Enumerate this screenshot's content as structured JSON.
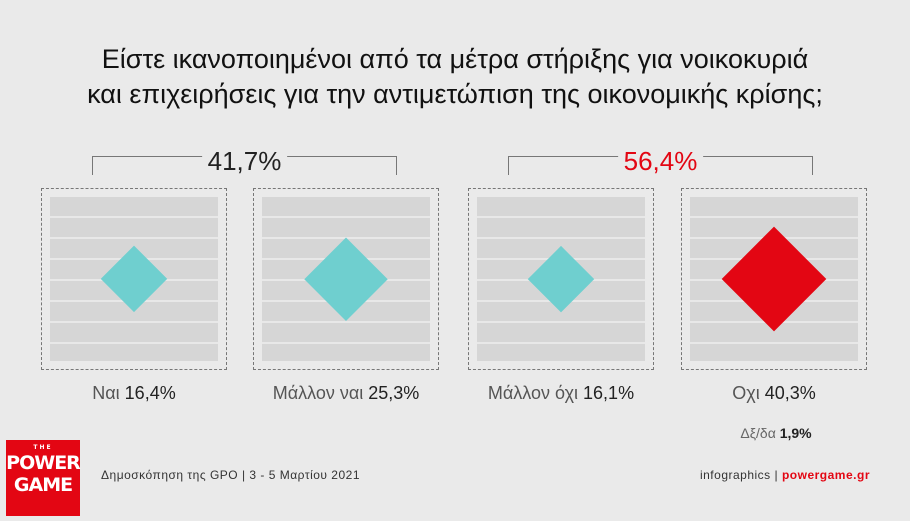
{
  "title": {
    "line1": "Είστε ικανοποιημένοι από τα μέτρα στήριξης για νοικοκυριά",
    "line2": "και επιχειρήσεις για την αντιμετώπιση της οικονομικής κρίσης;"
  },
  "groups": [
    {
      "label": "41,7%",
      "color": "#222222"
    },
    {
      "label": "56,4%",
      "color": "#e30613"
    }
  ],
  "chart_data": {
    "type": "bar",
    "categories": [
      "Ναι",
      "Μάλλον ναι",
      "Μάλλον όχι",
      "Οχι"
    ],
    "values": [
      16.4,
      25.3,
      16.1,
      40.3
    ],
    "value_labels": [
      "16,4%",
      "25,3%",
      "16,1%",
      "40,3%"
    ],
    "colors": [
      "#6fcfcf",
      "#6fcfcf",
      "#6fcfcf",
      "#e30613"
    ],
    "undecided": {
      "label": "Δξ/δα",
      "value": 1.9,
      "value_label": "1,9%"
    }
  },
  "logo": {
    "the": "THE",
    "word1": "POWER",
    "word2": "GAME"
  },
  "footer": {
    "source": "Δημοσκόπηση της GPO |  3 - 5 Μαρτίου 2021",
    "infographics": "infographics |",
    "site": "powergame.gr"
  }
}
